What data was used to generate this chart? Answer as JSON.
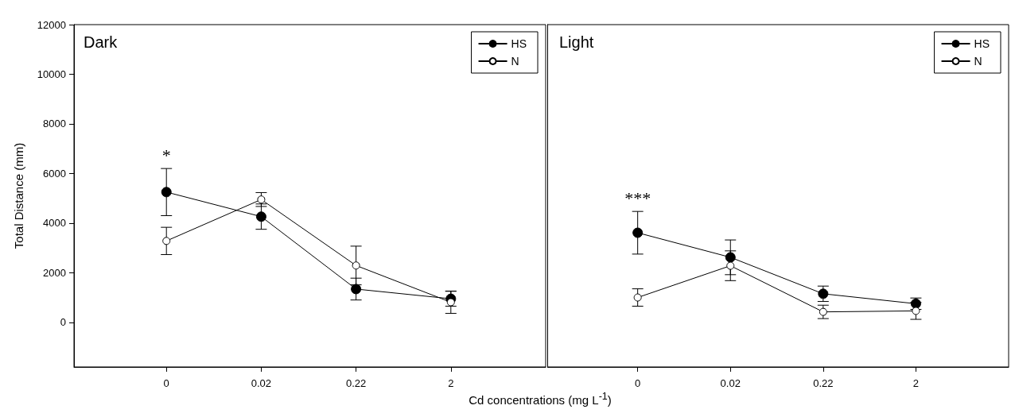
{
  "chart_data": [
    {
      "type": "line",
      "title": "Dark",
      "ylabel": "Total Distance (mm)",
      "xlabel": "Cd concentrations (mg L$^{-1}$)",
      "categories": [
        "0",
        "0.02",
        "0.22",
        "2"
      ],
      "series": [
        {
          "name": "HS",
          "color": "#000000",
          "values": [
            5250,
            4260,
            1340,
            950
          ],
          "errors": [
            950,
            510,
            440,
            300
          ]
        },
        {
          "name": "N",
          "color": "#ffffff",
          "values": [
            3280,
            4950,
            2290,
            810
          ],
          "errors": [
            550,
            280,
            780,
            450
          ]
        }
      ],
      "ylim": [
        -1800,
        12000
      ],
      "yticks": [
        0,
        2000,
        4000,
        6000,
        8000,
        10000,
        12000
      ],
      "annotations": [
        "*"
      ],
      "grid": false,
      "legend": "top right",
      "marker": "circle",
      "line_style": "solid"
    },
    {
      "type": "line",
      "title": "Light",
      "categories": [
        "0",
        "0.02",
        "0.22",
        "2"
      ],
      "series": [
        {
          "name": "HS",
          "color": "#000000",
          "values": [
            3610,
            2620,
            1150,
            750
          ],
          "errors": [
            860,
            700,
            310,
            230
          ]
        },
        {
          "name": "N",
          "color": "#ffffff",
          "values": [
            1000,
            2280,
            420,
            460
          ],
          "errors": [
            350,
            600,
            270,
            340
          ]
        }
      ],
      "ylim": [
        -1800,
        12000
      ],
      "yticks": [
        0,
        2000,
        4000,
        6000,
        8000,
        10000,
        12000
      ],
      "annotations": [
        "***"
      ],
      "grid": false,
      "legend": "top right",
      "marker": "circle",
      "line_style": "solid",
      "tick_labels": "x"
    }
  ]
}
